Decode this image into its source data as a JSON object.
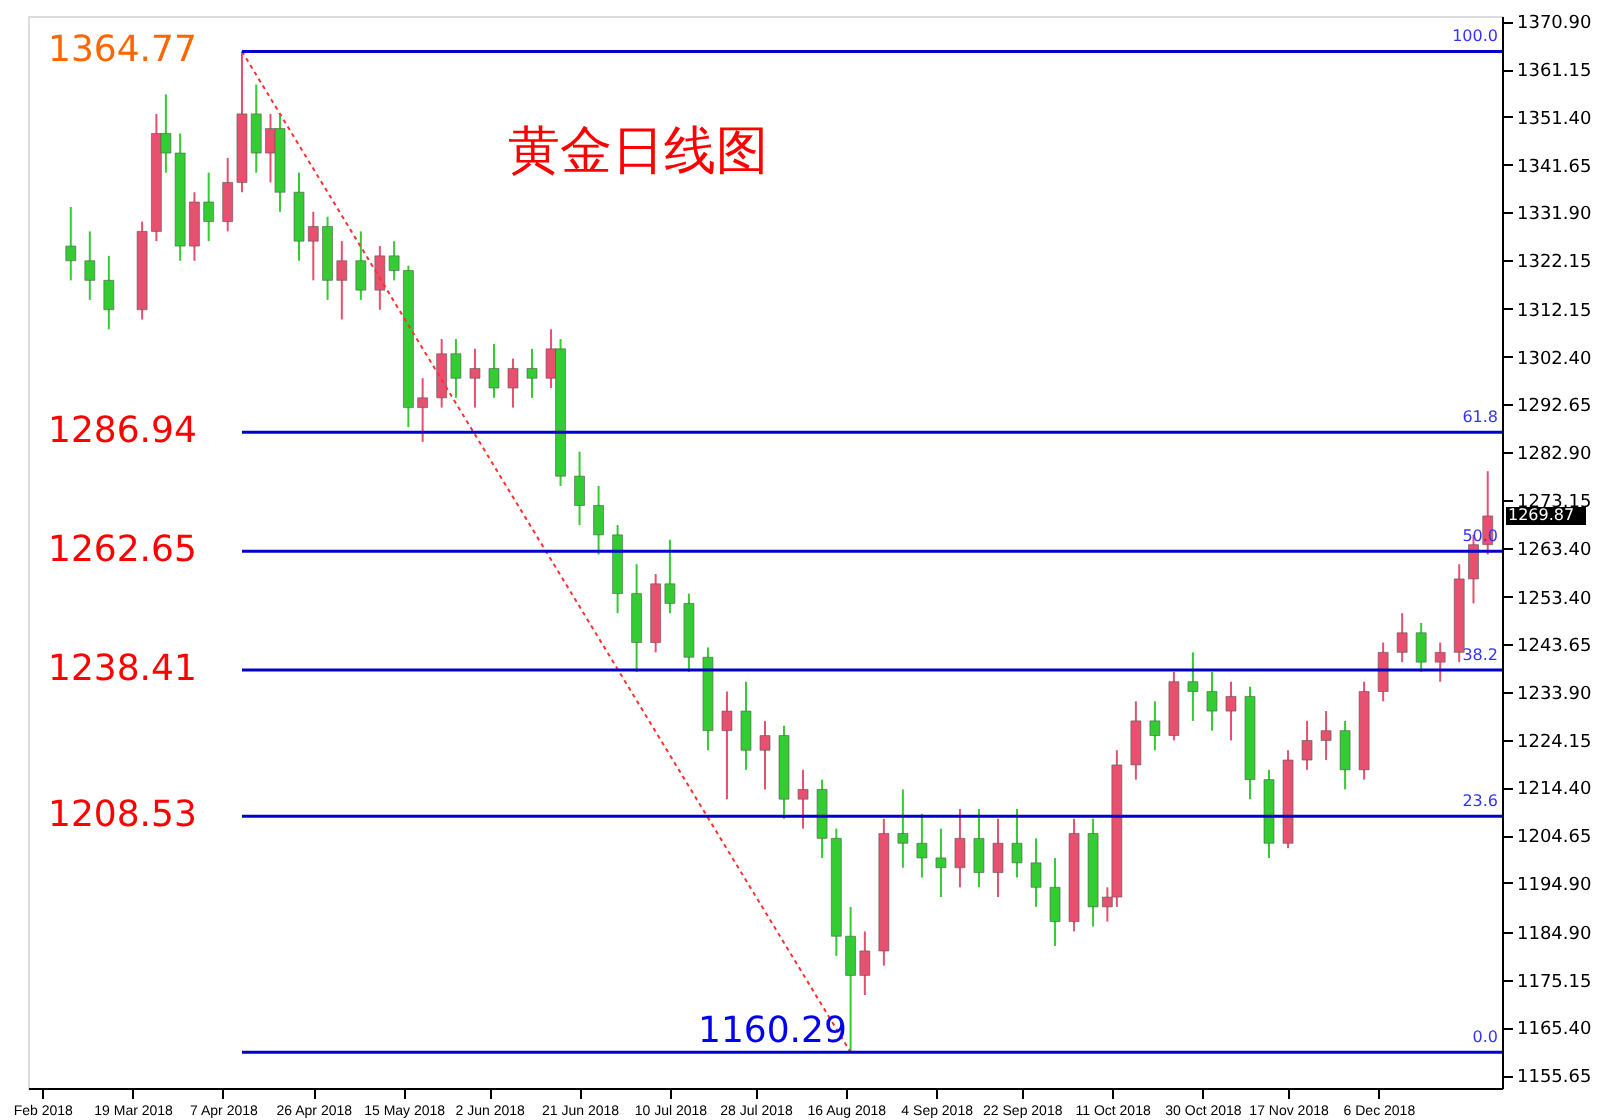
{
  "chart_data": {
    "type": "candlestick",
    "title": "黄金日线图",
    "x": [
      "2018-03-06",
      "2018-03-10",
      "2018-03-14",
      "2018-03-21",
      "2018-03-24",
      "2018-03-26",
      "2018-03-29",
      "2018-04-01",
      "2018-04-04",
      "2018-04-08",
      "2018-04-11",
      "2018-04-14",
      "2018-04-17",
      "2018-04-19",
      "2018-04-23",
      "2018-04-26",
      "2018-04-29",
      "2018-05-02",
      "2018-05-06",
      "2018-05-10",
      "2018-05-13",
      "2018-05-16",
      "2018-05-19",
      "2018-05-23",
      "2018-05-26",
      "2018-05-30",
      "2018-06-03",
      "2018-06-07",
      "2018-06-11",
      "2018-06-15",
      "2018-06-17",
      "2018-06-21",
      "2018-06-25",
      "2018-06-29",
      "2018-07-03",
      "2018-07-07",
      "2018-07-10",
      "2018-07-14",
      "2018-07-18",
      "2018-07-22",
      "2018-07-26",
      "2018-07-30",
      "2018-08-03",
      "2018-08-07",
      "2018-08-11",
      "2018-08-14",
      "2018-08-17",
      "2018-08-20",
      "2018-08-24",
      "2018-08-28",
      "2018-09-01",
      "2018-09-05",
      "2018-09-09",
      "2018-09-13",
      "2018-09-17",
      "2018-09-21",
      "2018-09-25",
      "2018-09-29",
      "2018-10-03",
      "2018-10-07",
      "2018-10-10",
      "2018-10-12",
      "2018-10-16",
      "2018-10-20",
      "2018-10-24",
      "2018-10-28",
      "2018-11-01",
      "2018-11-05",
      "2018-11-09",
      "2018-11-13",
      "2018-11-17",
      "2018-11-21",
      "2018-11-25",
      "2018-11-29",
      "2018-12-03",
      "2018-12-07",
      "2018-12-11",
      "2018-12-15",
      "2018-12-19",
      "2018-12-23",
      "2018-12-26",
      "2018-12-29"
    ],
    "ohlc": [
      [
        1325,
        1333,
        1318,
        1322
      ],
      [
        1322,
        1328,
        1314,
        1318
      ],
      [
        1318,
        1323,
        1308,
        1312
      ],
      [
        1312,
        1330,
        1310,
        1328
      ],
      [
        1328,
        1352,
        1326,
        1348
      ],
      [
        1348,
        1356,
        1340,
        1344
      ],
      [
        1344,
        1348,
        1322,
        1325
      ],
      [
        1325,
        1336,
        1322,
        1334
      ],
      [
        1334,
        1340,
        1326,
        1330
      ],
      [
        1330,
        1343,
        1328,
        1338
      ],
      [
        1338,
        1364.77,
        1336,
        1352
      ],
      [
        1352,
        1358,
        1340,
        1344
      ],
      [
        1344,
        1352,
        1338,
        1349
      ],
      [
        1349,
        1352,
        1332,
        1336
      ],
      [
        1336,
        1340,
        1322,
        1326
      ],
      [
        1326,
        1332,
        1318,
        1329
      ],
      [
        1329,
        1331,
        1314,
        1318
      ],
      [
        1318,
        1326,
        1310,
        1322
      ],
      [
        1322,
        1328,
        1314,
        1316
      ],
      [
        1316,
        1325,
        1312,
        1323
      ],
      [
        1323,
        1326,
        1318,
        1320
      ],
      [
        1320,
        1321,
        1288,
        1292
      ],
      [
        1292,
        1298,
        1285,
        1294
      ],
      [
        1294,
        1306,
        1292,
        1303
      ],
      [
        1303,
        1306,
        1294,
        1298
      ],
      [
        1298,
        1304,
        1292,
        1300
      ],
      [
        1300,
        1305,
        1294,
        1296
      ],
      [
        1296,
        1302,
        1292,
        1300
      ],
      [
        1300,
        1304,
        1294,
        1298
      ],
      [
        1298,
        1308,
        1296,
        1304
      ],
      [
        1304,
        1306,
        1276,
        1278
      ],
      [
        1278,
        1283,
        1268,
        1272
      ],
      [
        1272,
        1276,
        1262,
        1266
      ],
      [
        1266,
        1268,
        1250,
        1254
      ],
      [
        1254,
        1260,
        1238,
        1244
      ],
      [
        1244,
        1258,
        1242,
        1256
      ],
      [
        1256,
        1265,
        1250,
        1252
      ],
      [
        1252,
        1254,
        1238,
        1241
      ],
      [
        1241,
        1243,
        1222,
        1226
      ],
      [
        1226,
        1234,
        1212,
        1230
      ],
      [
        1230,
        1236,
        1218,
        1222
      ],
      [
        1222,
        1228,
        1214,
        1225
      ],
      [
        1225,
        1227,
        1208,
        1212
      ],
      [
        1212,
        1218,
        1206,
        1214
      ],
      [
        1214,
        1216,
        1200,
        1204
      ],
      [
        1204,
        1206,
        1180,
        1184
      ],
      [
        1184,
        1190,
        1160.29,
        1176
      ],
      [
        1176,
        1185,
        1172,
        1181
      ],
      [
        1181,
        1208,
        1178,
        1205
      ],
      [
        1205,
        1214,
        1198,
        1203
      ],
      [
        1203,
        1209,
        1196,
        1200
      ],
      [
        1200,
        1206,
        1192,
        1198
      ],
      [
        1198,
        1210,
        1194,
        1204
      ],
      [
        1204,
        1210,
        1194,
        1197
      ],
      [
        1197,
        1208,
        1192,
        1203
      ],
      [
        1203,
        1210,
        1196,
        1199
      ],
      [
        1199,
        1204,
        1190,
        1194
      ],
      [
        1194,
        1200,
        1182,
        1187
      ],
      [
        1187,
        1208,
        1185,
        1205
      ],
      [
        1205,
        1208,
        1186,
        1190
      ],
      [
        1190,
        1194,
        1187,
        1192
      ],
      [
        1192,
        1222,
        1190,
        1219
      ],
      [
        1219,
        1232,
        1216,
        1228
      ],
      [
        1228,
        1232,
        1222,
        1225
      ],
      [
        1225,
        1238,
        1224,
        1236
      ],
      [
        1236,
        1242,
        1228,
        1234
      ],
      [
        1234,
        1238,
        1226,
        1230
      ],
      [
        1230,
        1236,
        1224,
        1233
      ],
      [
        1233,
        1235,
        1212,
        1216
      ],
      [
        1216,
        1218,
        1200,
        1203
      ],
      [
        1203,
        1222,
        1202,
        1220
      ],
      [
        1220,
        1228,
        1218,
        1224
      ],
      [
        1224,
        1230,
        1220,
        1226
      ],
      [
        1226,
        1228,
        1214,
        1218
      ],
      [
        1218,
        1236,
        1216,
        1234
      ],
      [
        1234,
        1244,
        1232,
        1242
      ],
      [
        1242,
        1250,
        1240,
        1246
      ],
      [
        1246,
        1248,
        1238,
        1240
      ],
      [
        1240,
        1244,
        1236,
        1242
      ],
      [
        1242,
        1260,
        1240,
        1257
      ],
      [
        1257,
        1266,
        1252,
        1264
      ],
      [
        1264,
        1279,
        1262,
        1269.87
      ]
    ],
    "colors": [
      "#33cc33",
      "#33cc33",
      "#33cc33",
      "#e8506f",
      "#e8506f",
      "#33cc33",
      "#33cc33",
      "#e8506f",
      "#33cc33",
      "#e8506f",
      "#e8506f",
      "#33cc33",
      "#e8506f",
      "#33cc33",
      "#33cc33",
      "#e8506f",
      "#33cc33",
      "#e8506f",
      "#33cc33",
      "#e8506f",
      "#33cc33",
      "#33cc33",
      "#e8506f",
      "#e8506f",
      "#33cc33",
      "#e8506f",
      "#33cc33",
      "#e8506f",
      "#33cc33",
      "#e8506f",
      "#33cc33",
      "#33cc33",
      "#33cc33",
      "#33cc33",
      "#33cc33",
      "#e8506f",
      "#33cc33",
      "#33cc33",
      "#33cc33",
      "#e8506f",
      "#33cc33",
      "#e8506f",
      "#33cc33",
      "#e8506f",
      "#33cc33",
      "#33cc33",
      "#33cc33",
      "#e8506f",
      "#e8506f",
      "#33cc33",
      "#33cc33",
      "#33cc33",
      "#e8506f",
      "#33cc33",
      "#e8506f",
      "#33cc33",
      "#33cc33",
      "#33cc33",
      "#e8506f",
      "#33cc33",
      "#e8506f",
      "#e8506f",
      "#e8506f",
      "#33cc33",
      "#e8506f",
      "#33cc33",
      "#33cc33",
      "#e8506f",
      "#33cc33",
      "#33cc33",
      "#e8506f",
      "#e8506f",
      "#e8506f",
      "#33cc33",
      "#e8506f",
      "#e8506f",
      "#e8506f",
      "#33cc33",
      "#e8506f",
      "#e8506f",
      "#e8506f",
      "#e8506f"
    ],
    "series": [
      {
        "type": "line",
        "x": [
          "2018-04-11",
          "2018-08-17"
        ],
        "values": [
          1364.77,
          1160.29
        ],
        "color": "#ff3030",
        "line_style": "dotted"
      }
    ],
    "ref_lines": [
      {
        "axis": "y",
        "value": 1364.77,
        "label": "1364.77",
        "color": "#0000cc"
      },
      {
        "axis": "y",
        "value": 1286.94,
        "label": "1286.94",
        "color": "#0000cc"
      },
      {
        "axis": "y",
        "value": 1262.65,
        "label": "1262.65",
        "color": "#0000cc"
      },
      {
        "axis": "y",
        "value": 1238.41,
        "label": "1238.41",
        "color": "#0000cc"
      },
      {
        "axis": "y",
        "value": 1208.53,
        "label": "1208.53",
        "color": "#0000cc"
      },
      {
        "axis": "y",
        "value": 1160.29,
        "label": "1160.29",
        "color": "#0000cc"
      }
    ],
    "annotations": [
      {
        "text": "1269.87",
        "x": "2018-12-29",
        "y": 1269.87
      },
      {
        "text": "100.0",
        "x": "2018-12-31",
        "y": 1364.77
      },
      {
        "text": "61.8",
        "x": "2018-12-31",
        "y": 1286.94
      },
      {
        "text": "50.0",
        "x": "2018-12-31",
        "y": 1262.65
      },
      {
        "text": "38.2",
        "x": "2018-12-31",
        "y": 1238.41
      },
      {
        "text": "23.6",
        "x": "2018-12-31",
        "y": 1208.53
      },
      {
        "text": "0.0",
        "x": "2018-12-31",
        "y": 1160.29
      }
    ],
    "xlim": [
      "2018-02-25",
      "2019-01-01"
    ],
    "xticks": [
      {
        "value": "2018-02-28",
        "label": "Feb 2018"
      },
      {
        "value": "2018-03-19",
        "label": "19 Mar 2018"
      },
      {
        "value": "2018-04-07",
        "label": "7 Apr 2018"
      },
      {
        "value": "2018-04-26",
        "label": "26 Apr 2018"
      },
      {
        "value": "2018-05-15",
        "label": "15 May 2018"
      },
      {
        "value": "2018-06-02",
        "label": "2 Jun 2018"
      },
      {
        "value": "2018-06-21",
        "label": "21 Jun 2018"
      },
      {
        "value": "2018-07-10",
        "label": "10 Jul 2018"
      },
      {
        "value": "2018-07-28",
        "label": "28 Jul 2018"
      },
      {
        "value": "2018-08-16",
        "label": "16 Aug 2018"
      },
      {
        "value": "2018-09-04",
        "label": "4 Sep 2018"
      },
      {
        "value": "2018-09-22",
        "label": "22 Sep 2018"
      },
      {
        "value": "2018-10-11",
        "label": "11 Oct 2018"
      },
      {
        "value": "2018-10-30",
        "label": "30 Oct 2018"
      },
      {
        "value": "2018-11-17",
        "label": "17 Nov 2018"
      },
      {
        "value": "2018-12-06",
        "label": "6 Dec 2018"
      }
    ],
    "ylim": [
      1153.0,
      1372.0
    ],
    "yticks": [
      {
        "value": 1370.9,
        "label": "1370.90"
      },
      {
        "value": 1361.15,
        "label": "1361.15"
      },
      {
        "value": 1351.4,
        "label": "1351.40"
      },
      {
        "value": 1341.65,
        "label": "1341.65"
      },
      {
        "value": 1331.9,
        "label": "1331.90"
      },
      {
        "value": 1322.15,
        "label": "1322.15"
      },
      {
        "value": 1312.15,
        "label": "1312.15"
      },
      {
        "value": 1302.4,
        "label": "1302.40"
      },
      {
        "value": 1292.65,
        "label": "1292.65"
      },
      {
        "value": 1282.9,
        "label": "1282.90"
      },
      {
        "value": 1273.15,
        "label": "1273.15"
      },
      {
        "value": 1263.4,
        "label": "1263.40"
      },
      {
        "value": 1253.4,
        "label": "1253.40"
      },
      {
        "value": 1243.65,
        "label": "1243.65"
      },
      {
        "value": 1233.9,
        "label": "1233.90"
      },
      {
        "value": 1224.15,
        "label": "1224.15"
      },
      {
        "value": 1214.4,
        "label": "1214.40"
      },
      {
        "value": 1204.65,
        "label": "1204.65"
      },
      {
        "value": 1194.9,
        "label": "1194.90"
      },
      {
        "value": 1184.9,
        "label": "1184.90"
      },
      {
        "value": 1175.15,
        "label": "1175.15"
      },
      {
        "value": 1165.4,
        "label": "1165.40"
      },
      {
        "value": 1155.65,
        "label": "1155.65"
      }
    ],
    "grid": false
  }
}
